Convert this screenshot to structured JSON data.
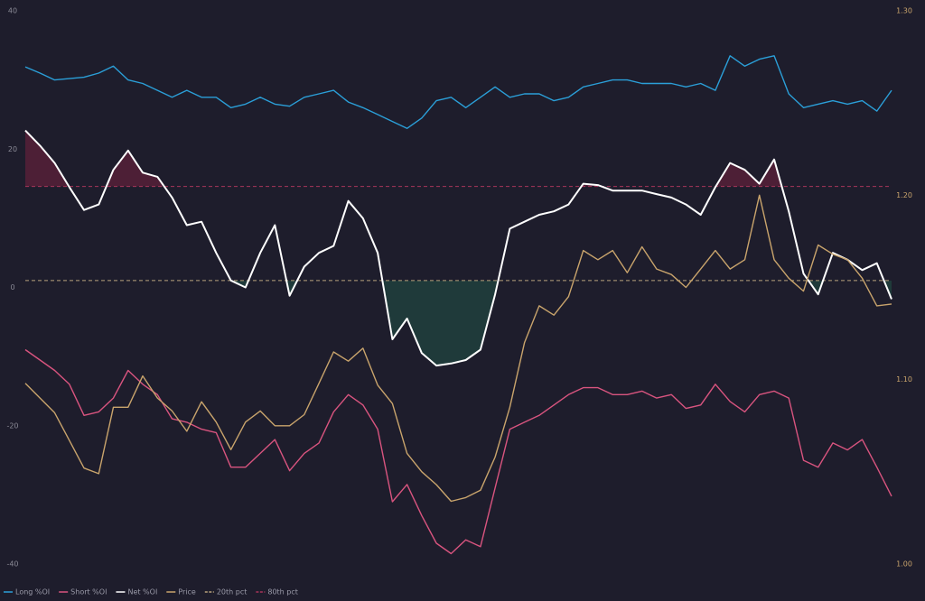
{
  "chart_data": {
    "type": "line",
    "categories": [
      null,
      null,
      null,
      null,
      null,
      null,
      null,
      null,
      null,
      null,
      null,
      null,
      null,
      null,
      null,
      null,
      null,
      null,
      null,
      null,
      null,
      null,
      null,
      null,
      null,
      null,
      null,
      null,
      null,
      null,
      null,
      null,
      null,
      null,
      null,
      null,
      null,
      null,
      null,
      null,
      null,
      null,
      null,
      null,
      null,
      null,
      null,
      null,
      null,
      null,
      null,
      null,
      null,
      null,
      null,
      null,
      null,
      null,
      null,
      null
    ],
    "ylim": [
      -40,
      40
    ],
    "yticks": [
      -40,
      -20,
      0,
      20,
      40
    ],
    "y2lim": [
      1.0,
      1.3
    ],
    "y2ticks": [
      {
        "value": 1.0,
        "label": "1.00"
      },
      {
        "value": 1.1,
        "label": "1.10"
      },
      {
        "value": 1.2,
        "label": "1.20"
      },
      {
        "value": 1.3,
        "label": "1.30"
      }
    ],
    "series": [
      {
        "name": "Long %OI",
        "color": "#2b9fd8",
        "values": [
          31.9,
          31,
          30,
          30.2,
          30.4,
          31,
          32,
          30,
          29.5,
          28.5,
          27.5,
          28.5,
          27.5,
          27.5,
          26,
          26.5,
          27.5,
          26.5,
          26.2,
          27.5,
          28,
          28.5,
          26.8,
          26,
          25,
          24,
          23,
          24.5,
          27,
          27.5,
          26,
          27.5,
          29,
          27.5,
          28,
          28,
          27,
          27.5,
          29,
          29.5,
          30,
          30,
          29.5,
          29.5,
          29.5,
          29,
          29.5,
          28.5,
          33.5,
          32,
          33,
          33.5,
          28,
          26,
          26.5,
          27,
          26.5,
          27,
          25.5,
          28.5
        ]
      },
      {
        "name": "Short %OI",
        "color": "#d9547f",
        "values": [
          -9,
          -10.5,
          -12,
          -14,
          -18.5,
          -18,
          -16,
          -12,
          -14,
          -15.5,
          -19,
          -19.5,
          -20.5,
          -21,
          -26,
          -26,
          -24,
          -22,
          -26.5,
          -24,
          -22.5,
          -18,
          -15.5,
          -17,
          -20.5,
          -31,
          -28.5,
          -33,
          -37,
          -38.5,
          -36.5,
          -37.5,
          -29,
          -20.5,
          -19.5,
          -18.5,
          -17,
          -15.5,
          -14.5,
          -14.5,
          -15.5,
          -15.5,
          -15,
          -16,
          -15.5,
          -17.5,
          -17,
          -14,
          -16.5,
          -18,
          -15.5,
          -15,
          -16,
          -25,
          -26,
          -22.5,
          -23.5,
          -22,
          -26,
          -30.2
        ]
      },
      {
        "name": "Net %OI",
        "color": "#ffffff",
        "fill_between": true,
        "values": [
          22.7,
          20.5,
          18,
          14.5,
          11.2,
          12,
          17,
          19.8,
          16.6,
          16,
          13,
          9,
          9.5,
          5,
          1,
          0,
          5,
          9,
          -1.2,
          3,
          5,
          6,
          12.5,
          10,
          5,
          -7.5,
          -4.5,
          -9.5,
          -11.3,
          -11,
          -10.5,
          -9,
          -1,
          8.5,
          9.5,
          10.5,
          11,
          12,
          15,
          14.8,
          14,
          14,
          14,
          13.5,
          13,
          12,
          10.5,
          14.5,
          18,
          17,
          15,
          18.5,
          11,
          2,
          -1,
          5,
          4,
          2.5,
          3.5,
          -1.7
        ]
      },
      {
        "name": "Price",
        "color": "#c9a46c",
        "axis": "y2",
        "values": [
          1.098,
          1.09,
          1.082,
          1.067,
          1.052,
          1.049,
          1.085,
          1.085,
          1.102,
          1.09,
          1.083,
          1.072,
          1.088,
          1.077,
          1.062,
          1.077,
          1.083,
          1.075,
          1.075,
          1.081,
          1.098,
          1.115,
          1.11,
          1.117,
          1.097,
          1.087,
          1.06,
          1.05,
          1.043,
          1.034,
          1.036,
          1.04,
          1.058,
          1.085,
          1.12,
          1.14,
          1.135,
          1.145,
          1.17,
          1.165,
          1.17,
          1.158,
          1.172,
          1.16,
          1.157,
          1.15,
          1.16,
          1.17,
          1.16,
          1.165,
          1.2,
          1.165,
          1.155,
          1.148,
          1.173,
          1.168,
          1.165,
          1.155,
          1.14,
          1.141
        ]
      }
    ],
    "thresholds": [
      {
        "name": "20th pct",
        "color": "#b9a27c",
        "value": 1.0,
        "fill": "#1f3a3a",
        "fill_side": "below"
      },
      {
        "name": "80th pct",
        "color": "#a8355a",
        "value": 14.6,
        "fill": "#4d1f36",
        "fill_side": "above"
      }
    ],
    "background": "#1e1d2c"
  }
}
